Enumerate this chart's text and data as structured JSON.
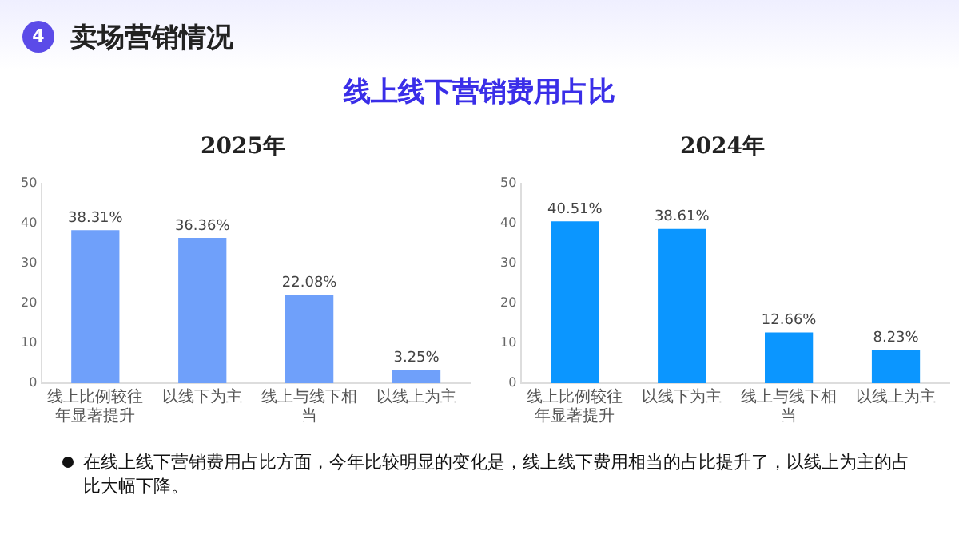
{
  "chart_data": [
    {
      "type": "other",
      "title": "卖场营销情况",
      "subtitle": "线上线下营销费用占比",
      "annotations": [
        "4",
        "在线上线下营销费用占比方面，今年比较明显的变化是，线上线下费用相当的占比提升了，以线上为主的占比大幅下降。"
      ]
    },
    {
      "type": "bar",
      "title": "2025年",
      "categories": [
        "线上比例较往年显著提升",
        "以线下为主",
        "线上与线下相当",
        "以线上为主"
      ],
      "values": [
        38.31,
        36.36,
        22.08,
        3.25
      ],
      "value_labels": [
        "38.31%",
        "36.36%",
        "22.08%",
        "3.25%"
      ],
      "color": "#6fa0fa",
      "ylim": [
        0,
        50
      ],
      "yticks": [
        0,
        10,
        20,
        30,
        40,
        50
      ],
      "grid": false,
      "legend": false
    },
    {
      "type": "bar",
      "title": "2024年",
      "categories": [
        "线上比例较往年显著提升",
        "以线下为主",
        "线上与线下相当",
        "以线上为主"
      ],
      "values": [
        40.51,
        38.61,
        12.66,
        8.23
      ],
      "value_labels": [
        "40.51%",
        "38.61%",
        "12.66%",
        "8.23%"
      ],
      "color": "#0b96ff",
      "ylim": [
        0,
        50
      ],
      "yticks": [
        0,
        10,
        20,
        30,
        40,
        50
      ],
      "grid": false,
      "legend": false
    }
  ]
}
